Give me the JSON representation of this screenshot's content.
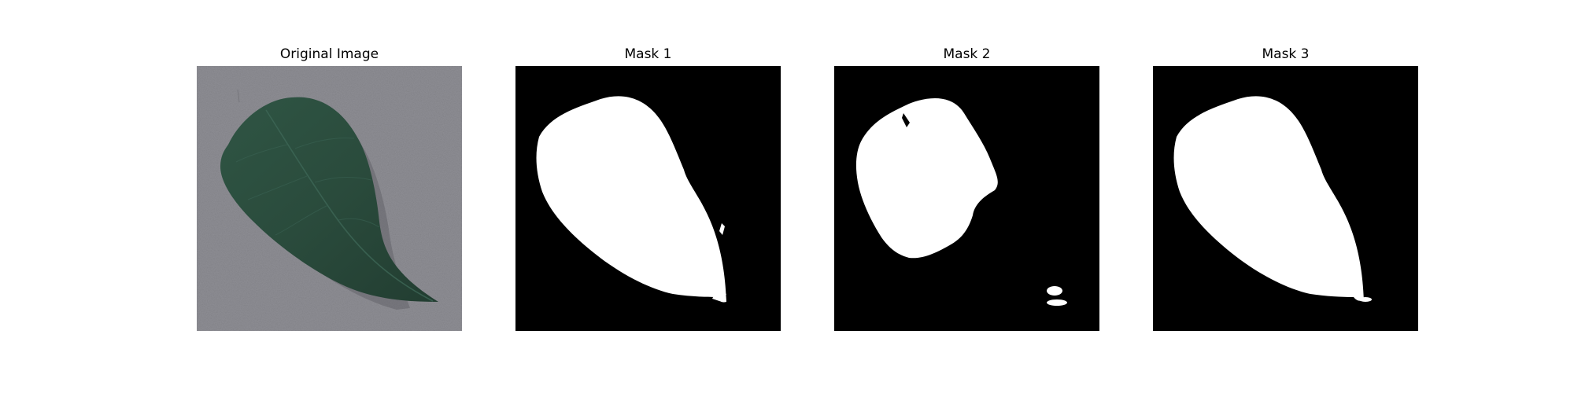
{
  "figure": {
    "panels": [
      {
        "title": "Original Image",
        "content": "leaf-photo"
      },
      {
        "title": "Mask 1",
        "content": "binary-mask"
      },
      {
        "title": "Mask 2",
        "content": "binary-mask"
      },
      {
        "title": "Mask 3",
        "content": "binary-mask"
      }
    ],
    "colors": {
      "background": "#ffffff",
      "mask_background": "#000000",
      "mask_foreground": "#ffffff",
      "photo_ground": "#8d8d93",
      "leaf": "#2b4b3c",
      "leaf_dark": "#1f3a2e"
    }
  }
}
